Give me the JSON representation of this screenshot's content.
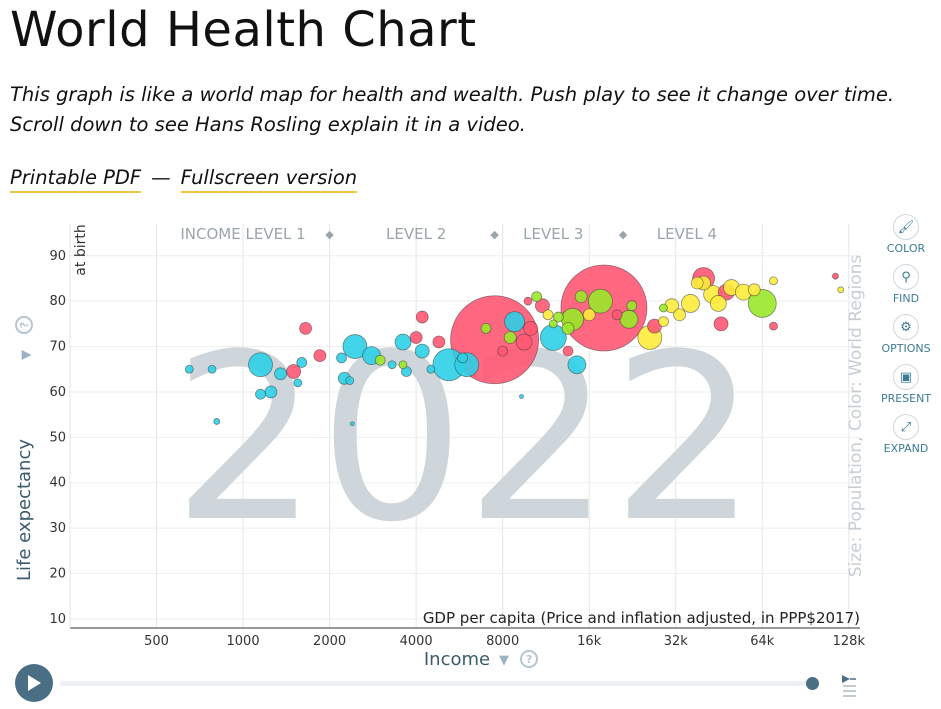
{
  "title": "World Health Chart",
  "intro": "This graph is like a world map for health and wealth. Push play to see it change over time. Scroll down to see Hans Rosling explain it in a video.",
  "links": {
    "pdf": "Printable PDF",
    "sep": "—",
    "fullscreen": "Fullscreen version"
  },
  "toolbar": [
    {
      "label": "COLOR",
      "icon": "paintbrush-icon",
      "glyph": "🖌"
    },
    {
      "label": "FIND",
      "icon": "search-icon",
      "glyph": "⚲"
    },
    {
      "label": "OPTIONS",
      "icon": "gear-icon",
      "glyph": "⚙"
    },
    {
      "label": "PRESENT",
      "icon": "present-icon",
      "glyph": "▣"
    },
    {
      "label": "EXPAND",
      "icon": "expand-icon",
      "glyph": "⤢"
    }
  ],
  "chart_data": {
    "type": "scatter",
    "year": "2022",
    "ylabel": "Life expectancy",
    "ylabel_sub": "at birth",
    "xlabel": "Income",
    "xlabel_sub": "GDP per capita (Price and inflation adjusted, in PPP$2017)",
    "size_color_label": "Size: Population, Color: World Regions",
    "x_scale": "log",
    "xlim": [
      250,
      140000
    ],
    "ylim": [
      8,
      97
    ],
    "x_ticks": [
      {
        "v": 500,
        "label": "500"
      },
      {
        "v": 1000,
        "label": "1000"
      },
      {
        "v": 2000,
        "label": "2000"
      },
      {
        "v": 4000,
        "label": "4000"
      },
      {
        "v": 8000,
        "label": "8000"
      },
      {
        "v": 16000,
        "label": "16k"
      },
      {
        "v": 32000,
        "label": "32k"
      },
      {
        "v": 64000,
        "label": "64k"
      },
      {
        "v": 128000,
        "label": "128k"
      }
    ],
    "y_ticks": [
      10,
      20,
      30,
      40,
      50,
      60,
      70,
      80,
      90
    ],
    "income_levels": [
      {
        "label": "INCOME LEVEL 1",
        "x": 1000
      },
      {
        "label": "LEVEL 2",
        "x": 4000
      },
      {
        "label": "LEVEL 3",
        "x": 12000
      },
      {
        "label": "LEVEL 4",
        "x": 35000
      }
    ],
    "income_dividers": [
      2000,
      7500,
      21000
    ],
    "region_colors": {
      "africa": "#2ecfe6",
      "asia": "#ff5872",
      "europe": "#fdeb3c",
      "americas": "#9ae829"
    },
    "points": [
      {
        "x": 7500,
        "y": 71.5,
        "r": 44,
        "c": "asia"
      },
      {
        "x": 18000,
        "y": 78.5,
        "r": 43,
        "c": "asia"
      },
      {
        "x": 64000,
        "y": 79.5,
        "r": 14,
        "c": "americas"
      },
      {
        "x": 14000,
        "y": 76,
        "r": 11,
        "c": "americas"
      },
      {
        "x": 17500,
        "y": 80,
        "r": 12,
        "c": "americas"
      },
      {
        "x": 22000,
        "y": 76,
        "r": 9,
        "c": "americas"
      },
      {
        "x": 12000,
        "y": 72,
        "r": 13,
        "c": "africa"
      },
      {
        "x": 5200,
        "y": 66,
        "r": 16,
        "c": "africa"
      },
      {
        "x": 6000,
        "y": 66,
        "r": 12,
        "c": "africa"
      },
      {
        "x": 1150,
        "y": 66,
        "r": 12,
        "c": "africa"
      },
      {
        "x": 2450,
        "y": 70,
        "r": 12,
        "c": "africa"
      },
      {
        "x": 2800,
        "y": 68,
        "r": 9,
        "c": "africa"
      },
      {
        "x": 3600,
        "y": 71,
        "r": 8,
        "c": "africa"
      },
      {
        "x": 4200,
        "y": 69,
        "r": 7,
        "c": "africa"
      },
      {
        "x": 8800,
        "y": 75.5,
        "r": 10,
        "c": "africa"
      },
      {
        "x": 14500,
        "y": 66,
        "r": 9,
        "c": "africa"
      },
      {
        "x": 1250,
        "y": 60,
        "r": 6,
        "c": "africa"
      },
      {
        "x": 1150,
        "y": 59.5,
        "r": 5,
        "c": "africa"
      },
      {
        "x": 1350,
        "y": 64,
        "r": 6,
        "c": "africa"
      },
      {
        "x": 2250,
        "y": 63,
        "r": 6,
        "c": "africa"
      },
      {
        "x": 3700,
        "y": 64.5,
        "r": 5,
        "c": "africa"
      },
      {
        "x": 3300,
        "y": 66,
        "r": 4,
        "c": "africa"
      },
      {
        "x": 1600,
        "y": 66.5,
        "r": 5,
        "c": "africa"
      },
      {
        "x": 2200,
        "y": 67.5,
        "r": 5,
        "c": "africa"
      },
      {
        "x": 1550,
        "y": 62,
        "r": 4,
        "c": "africa"
      },
      {
        "x": 650,
        "y": 65,
        "r": 4,
        "c": "africa"
      },
      {
        "x": 780,
        "y": 65,
        "r": 4,
        "c": "africa"
      },
      {
        "x": 810,
        "y": 53.5,
        "r": 3,
        "c": "africa"
      },
      {
        "x": 2400,
        "y": 53,
        "r": 2,
        "c": "africa"
      },
      {
        "x": 9300,
        "y": 59,
        "r": 2,
        "c": "africa"
      },
      {
        "x": 4500,
        "y": 65,
        "r": 4,
        "c": "africa"
      },
      {
        "x": 5800,
        "y": 67.5,
        "r": 5,
        "c": "africa"
      },
      {
        "x": 2350,
        "y": 62.5,
        "r": 4,
        "c": "africa"
      },
      {
        "x": 1650,
        "y": 74,
        "r": 6,
        "c": "asia"
      },
      {
        "x": 1500,
        "y": 64.5,
        "r": 7,
        "c": "asia"
      },
      {
        "x": 1850,
        "y": 68,
        "r": 6,
        "c": "asia"
      },
      {
        "x": 4200,
        "y": 76.5,
        "r": 6,
        "c": "asia"
      },
      {
        "x": 4000,
        "y": 72,
        "r": 6,
        "c": "asia"
      },
      {
        "x": 4800,
        "y": 71,
        "r": 6,
        "c": "asia"
      },
      {
        "x": 9500,
        "y": 71,
        "r": 8,
        "c": "asia"
      },
      {
        "x": 10000,
        "y": 74,
        "r": 7,
        "c": "asia"
      },
      {
        "x": 11000,
        "y": 79,
        "r": 7,
        "c": "asia"
      },
      {
        "x": 13500,
        "y": 69,
        "r": 5,
        "c": "asia"
      },
      {
        "x": 27000,
        "y": 74.5,
        "r": 7,
        "c": "asia"
      },
      {
        "x": 40000,
        "y": 85,
        "r": 11,
        "c": "asia"
      },
      {
        "x": 46000,
        "y": 75,
        "r": 7,
        "c": "asia"
      },
      {
        "x": 48000,
        "y": 82,
        "r": 8,
        "c": "asia"
      },
      {
        "x": 70000,
        "y": 74.5,
        "r": 4,
        "c": "asia"
      },
      {
        "x": 115000,
        "y": 85.5,
        "r": 3,
        "c": "asia"
      },
      {
        "x": 8000,
        "y": 69,
        "r": 5,
        "c": "asia"
      },
      {
        "x": 9800,
        "y": 80,
        "r": 4,
        "c": "asia"
      },
      {
        "x": 20000,
        "y": 77,
        "r": 5,
        "c": "asia"
      },
      {
        "x": 26000,
        "y": 72,
        "r": 12,
        "c": "europe"
      },
      {
        "x": 31000,
        "y": 79,
        "r": 7,
        "c": "europe"
      },
      {
        "x": 36000,
        "y": 79.5,
        "r": 9,
        "c": "europe"
      },
      {
        "x": 40000,
        "y": 84,
        "r": 7,
        "c": "europe"
      },
      {
        "x": 43000,
        "y": 81.5,
        "r": 9,
        "c": "europe"
      },
      {
        "x": 50000,
        "y": 83,
        "r": 8,
        "c": "europe"
      },
      {
        "x": 55000,
        "y": 82,
        "r": 8,
        "c": "europe"
      },
      {
        "x": 45000,
        "y": 79.5,
        "r": 8,
        "c": "europe"
      },
      {
        "x": 38000,
        "y": 84,
        "r": 6,
        "c": "europe"
      },
      {
        "x": 60000,
        "y": 82.5,
        "r": 6,
        "c": "europe"
      },
      {
        "x": 70000,
        "y": 84.5,
        "r": 4,
        "c": "europe"
      },
      {
        "x": 33000,
        "y": 77,
        "r": 6,
        "c": "europe"
      },
      {
        "x": 29000,
        "y": 75.5,
        "r": 5,
        "c": "europe"
      },
      {
        "x": 120000,
        "y": 82.5,
        "r": 3,
        "c": "europe"
      },
      {
        "x": 16000,
        "y": 77,
        "r": 6,
        "c": "europe"
      },
      {
        "x": 11500,
        "y": 77,
        "r": 5,
        "c": "europe"
      },
      {
        "x": 12500,
        "y": 76.5,
        "r": 5,
        "c": "americas"
      },
      {
        "x": 10500,
        "y": 81,
        "r": 5,
        "c": "americas"
      },
      {
        "x": 22500,
        "y": 79,
        "r": 5,
        "c": "americas"
      },
      {
        "x": 15000,
        "y": 81,
        "r": 6,
        "c": "americas"
      },
      {
        "x": 29000,
        "y": 78.5,
        "r": 4,
        "c": "americas"
      },
      {
        "x": 3000,
        "y": 67,
        "r": 5,
        "c": "americas"
      },
      {
        "x": 3600,
        "y": 66,
        "r": 4,
        "c": "americas"
      },
      {
        "x": 7000,
        "y": 74,
        "r": 5,
        "c": "americas"
      },
      {
        "x": 8500,
        "y": 72,
        "r": 6,
        "c": "americas"
      },
      {
        "x": 13500,
        "y": 74,
        "r": 6,
        "c": "americas"
      },
      {
        "x": 12000,
        "y": 75,
        "r": 4,
        "c": "americas"
      }
    ]
  },
  "timeslider": {
    "value": 0.99
  }
}
